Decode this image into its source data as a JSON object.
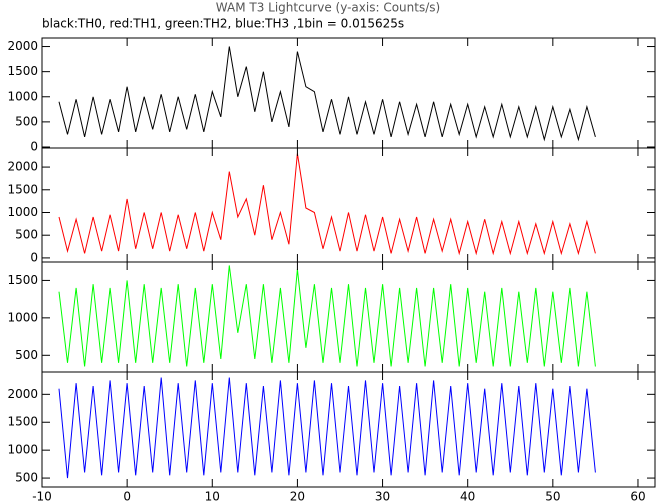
{
  "chart_data": [
    {
      "type": "line",
      "title": "WAM T3 Lightcurve (y-axis: Counts/s)",
      "subtitle": "black:TH0, red:TH1, green:TH2, blue:TH3 ,1bin = 0.015625s",
      "x": [
        -8,
        -7,
        -6,
        -5,
        -4,
        -3,
        -2,
        -1,
        0,
        1,
        2,
        3,
        4,
        5,
        6,
        7,
        8,
        9,
        10,
        11,
        12,
        13,
        14,
        15,
        16,
        17,
        18,
        19,
        20,
        21,
        22,
        23,
        24,
        25,
        26,
        27,
        28,
        29,
        30,
        31,
        32,
        33,
        34,
        35,
        36,
        37,
        38,
        39,
        40,
        41,
        42,
        43,
        44,
        45,
        46,
        47,
        48,
        49,
        50,
        51,
        52,
        53,
        54,
        55
      ],
      "series": [
        {
          "name": "TH0",
          "color": "#000000",
          "values": [
            900,
            250,
            950,
            200,
            1000,
            250,
            950,
            300,
            1200,
            300,
            1000,
            350,
            1050,
            300,
            1000,
            350,
            1050,
            300,
            1100,
            600,
            2000,
            1000,
            1600,
            700,
            1500,
            500,
            1100,
            400,
            1900,
            1200,
            1100,
            300,
            950,
            250,
            1000,
            250,
            900,
            250,
            950,
            200,
            900,
            250,
            850,
            200,
            900,
            200,
            850,
            250,
            850,
            200,
            800,
            200,
            850,
            200,
            800,
            200,
            800,
            150,
            800,
            200,
            750,
            150,
            800,
            200
          ]
        }
      ],
      "xlim": [
        -10,
        62
      ],
      "ylim": [
        -20,
        2170
      ],
      "yticks": [
        0,
        500,
        1000,
        1500,
        2000
      ]
    },
    {
      "type": "line",
      "x": [
        -8,
        -7,
        -6,
        -5,
        -4,
        -3,
        -2,
        -1,
        0,
        1,
        2,
        3,
        4,
        5,
        6,
        7,
        8,
        9,
        10,
        11,
        12,
        13,
        14,
        15,
        16,
        17,
        18,
        19,
        20,
        21,
        22,
        23,
        24,
        25,
        26,
        27,
        28,
        29,
        30,
        31,
        32,
        33,
        34,
        35,
        36,
        37,
        38,
        39,
        40,
        41,
        42,
        43,
        44,
        45,
        46,
        47,
        48,
        49,
        50,
        51,
        52,
        53,
        54,
        55
      ],
      "series": [
        {
          "name": "TH1",
          "color": "#ff0000",
          "values": [
            900,
            150,
            850,
            100,
            900,
            150,
            950,
            150,
            1300,
            200,
            1000,
            200,
            1000,
            150,
            950,
            200,
            1000,
            150,
            1000,
            400,
            1900,
            900,
            1300,
            500,
            1600,
            400,
            1000,
            300,
            2300,
            1100,
            1000,
            200,
            900,
            150,
            1000,
            150,
            950,
            150,
            900,
            100,
            850,
            150,
            900,
            100,
            850,
            150,
            850,
            100,
            800,
            100,
            850,
            100,
            800,
            100,
            800,
            100,
            750,
            100,
            800,
            100,
            750,
            100,
            800,
            100
          ]
        }
      ],
      "xlim": [
        -10,
        62
      ],
      "ylim": [
        -90,
        2420
      ],
      "yticks": [
        0,
        500,
        1000,
        1500,
        2000
      ]
    },
    {
      "type": "line",
      "x": [
        -8,
        -7,
        -6,
        -5,
        -4,
        -3,
        -2,
        -1,
        0,
        1,
        2,
        3,
        4,
        5,
        6,
        7,
        8,
        9,
        10,
        11,
        12,
        13,
        14,
        15,
        16,
        17,
        18,
        19,
        20,
        21,
        22,
        23,
        24,
        25,
        26,
        27,
        28,
        29,
        30,
        31,
        32,
        33,
        34,
        35,
        36,
        37,
        38,
        39,
        40,
        41,
        42,
        43,
        44,
        45,
        46,
        47,
        48,
        49,
        50,
        51,
        52,
        53,
        54,
        55
      ],
      "series": [
        {
          "name": "TH2",
          "color": "#00ff00",
          "values": [
            1350,
            400,
            1400,
            350,
            1450,
            400,
            1400,
            400,
            1500,
            400,
            1450,
            400,
            1400,
            400,
            1450,
            350,
            1400,
            400,
            1450,
            450,
            1700,
            800,
            1450,
            450,
            1450,
            400,
            1400,
            400,
            1650,
            600,
            1450,
            400,
            1400,
            400,
            1450,
            350,
            1400,
            400,
            1450,
            350,
            1400,
            400,
            1400,
            350,
            1400,
            400,
            1450,
            350,
            1400,
            400,
            1350,
            350,
            1400,
            350,
            1350,
            400,
            1400,
            350,
            1350,
            400,
            1400,
            350,
            1350,
            350
          ]
        }
      ],
      "xlim": [
        -10,
        62
      ],
      "ylim": [
        277,
        1746
      ],
      "yticks": [
        500,
        1000,
        1500
      ]
    },
    {
      "type": "line",
      "x": [
        -8,
        -7,
        -6,
        -5,
        -4,
        -3,
        -2,
        -1,
        0,
        1,
        2,
        3,
        4,
        5,
        6,
        7,
        8,
        9,
        10,
        11,
        12,
        13,
        14,
        15,
        16,
        17,
        18,
        19,
        20,
        21,
        22,
        23,
        24,
        25,
        26,
        27,
        28,
        29,
        30,
        31,
        32,
        33,
        34,
        35,
        36,
        37,
        38,
        39,
        40,
        41,
        42,
        43,
        44,
        45,
        46,
        47,
        48,
        49,
        50,
        51,
        52,
        53,
        54,
        55
      ],
      "series": [
        {
          "name": "TH3",
          "color": "#0000ff",
          "values": [
            2100,
            500,
            2200,
            600,
            2150,
            550,
            2250,
            600,
            2200,
            550,
            2150,
            600,
            2300,
            550,
            2200,
            600,
            2250,
            550,
            2200,
            600,
            2300,
            600,
            2200,
            550,
            2150,
            600,
            2250,
            550,
            2200,
            600,
            2250,
            550,
            2200,
            600,
            2150,
            550,
            2250,
            600,
            2200,
            550,
            2150,
            600,
            2200,
            550,
            2250,
            600,
            2150,
            550,
            2200,
            600,
            2100,
            550,
            2200,
            600,
            2150,
            550,
            2200,
            600,
            2100,
            550,
            2150,
            600,
            2100,
            600
          ]
        }
      ],
      "xlim": [
        -10,
        62
      ],
      "ylim": [
        340,
        2400
      ],
      "yticks": [
        500,
        1000,
        1500,
        2000
      ],
      "xticks": [
        -10,
        0,
        10,
        20,
        30,
        40,
        50,
        60
      ]
    }
  ]
}
